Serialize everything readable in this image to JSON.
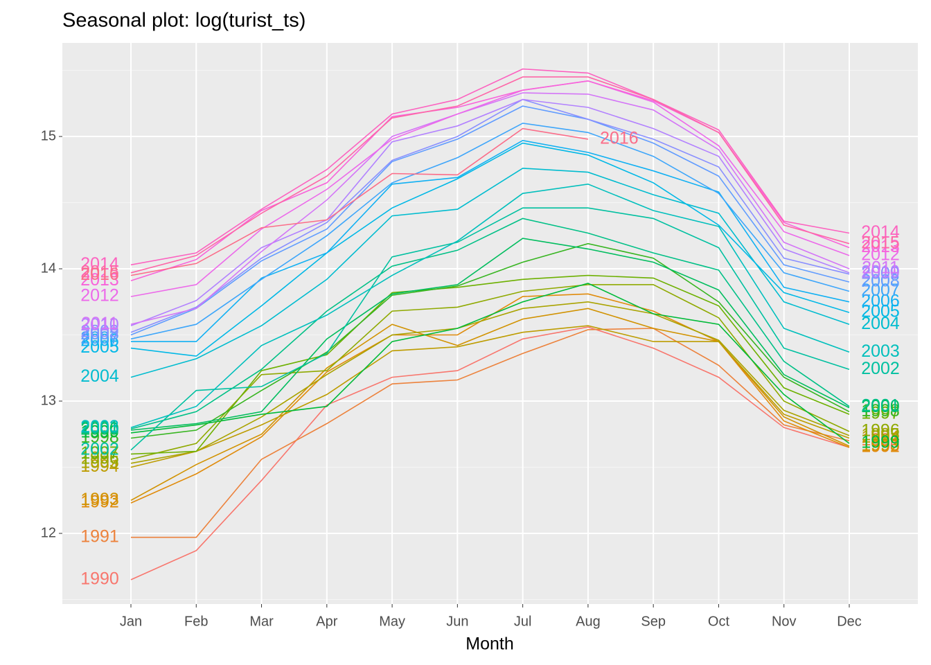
{
  "chart_data": {
    "type": "line",
    "title": "Seasonal plot: log(turist_ts)",
    "x_label": "Month",
    "categories": [
      "Jan",
      "Feb",
      "Mar",
      "Apr",
      "May",
      "Jun",
      "Jul",
      "Aug",
      "Sep",
      "Oct",
      "Nov",
      "Dec"
    ],
    "ylim": [
      11.466,
      15.707
    ],
    "yticks": [
      12,
      13,
      14,
      15
    ],
    "grid": true,
    "series": [
      {
        "name": "1990",
        "color": "#F8766D",
        "values": [
          11.65,
          11.87,
          12.4,
          12.97,
          13.18,
          13.23,
          13.47,
          13.56,
          13.4,
          13.18,
          12.8,
          12.65
        ]
      },
      {
        "name": "1991",
        "color": "#EC823C",
        "values": [
          11.97,
          11.97,
          12.56,
          12.83,
          13.13,
          13.16,
          13.36,
          13.54,
          13.55,
          13.27,
          12.82,
          12.7
        ]
      },
      {
        "name": "1992",
        "color": "#E08B0B",
        "values": [
          12.23,
          12.45,
          12.73,
          13.22,
          13.5,
          13.5,
          13.79,
          13.81,
          13.68,
          13.45,
          12.85,
          12.65
        ]
      },
      {
        "name": "1993",
        "color": "#D19200",
        "values": [
          12.25,
          12.52,
          12.75,
          13.25,
          13.58,
          13.42,
          13.62,
          13.7,
          13.55,
          13.45,
          12.88,
          12.66
        ]
      },
      {
        "name": "1994",
        "color": "#BD9C00",
        "values": [
          12.5,
          12.62,
          12.82,
          13.05,
          13.38,
          13.41,
          13.52,
          13.57,
          13.45,
          13.45,
          12.9,
          12.72
        ]
      },
      {
        "name": "1995",
        "color": "#AAA300",
        "values": [
          12.53,
          12.62,
          12.88,
          13.2,
          13.5,
          13.55,
          13.7,
          13.75,
          13.66,
          13.46,
          12.93,
          12.74
        ]
      },
      {
        "name": "1996",
        "color": "#8FA900",
        "values": [
          12.56,
          12.68,
          13.2,
          13.23,
          13.68,
          13.71,
          13.83,
          13.88,
          13.88,
          13.63,
          13.0,
          12.77
        ]
      },
      {
        "name": "1997",
        "color": "#6DB000",
        "values": [
          12.6,
          12.62,
          13.23,
          13.35,
          13.82,
          13.86,
          13.92,
          13.95,
          13.93,
          13.72,
          13.1,
          12.9
        ]
      },
      {
        "name": "1998",
        "color": "#37B520",
        "values": [
          12.72,
          12.78,
          13.08,
          13.37,
          13.8,
          13.87,
          14.05,
          14.19,
          14.08,
          13.75,
          13.18,
          12.92
        ]
      },
      {
        "name": "1999",
        "color": "#00BA38",
        "values": [
          12.76,
          12.82,
          12.9,
          12.96,
          13.45,
          13.55,
          13.75,
          13.89,
          13.66,
          13.58,
          13.05,
          12.68
        ]
      },
      {
        "name": "2000",
        "color": "#00BD5E",
        "values": [
          12.78,
          12.83,
          12.92,
          13.47,
          13.81,
          13.88,
          14.23,
          14.15,
          14.05,
          13.84,
          13.2,
          12.95
        ]
      },
      {
        "name": "2001",
        "color": "#00C086",
        "values": [
          12.79,
          12.92,
          13.24,
          13.68,
          14.02,
          14.14,
          14.38,
          14.27,
          14.12,
          13.99,
          13.3,
          12.96
        ]
      },
      {
        "name": "2002",
        "color": "#00C0A0",
        "values": [
          12.63,
          13.08,
          13.11,
          13.36,
          14.09,
          14.2,
          14.46,
          14.46,
          14.38,
          14.16,
          13.4,
          13.24
        ]
      },
      {
        "name": "2003",
        "color": "#00BFBC",
        "values": [
          12.8,
          12.96,
          13.42,
          13.65,
          13.95,
          14.21,
          14.57,
          14.64,
          14.44,
          14.32,
          13.55,
          13.37
        ]
      },
      {
        "name": "2004",
        "color": "#00BCCF",
        "values": [
          13.18,
          13.32,
          13.57,
          13.92,
          14.4,
          14.45,
          14.76,
          14.73,
          14.56,
          14.42,
          13.75,
          13.58
        ]
      },
      {
        "name": "2005",
        "color": "#00B8E6",
        "values": [
          13.4,
          13.34,
          13.72,
          14.12,
          14.46,
          14.68,
          14.95,
          14.86,
          14.65,
          14.33,
          13.82,
          13.67
        ]
      },
      {
        "name": "2006",
        "color": "#10B0F3",
        "values": [
          13.45,
          13.45,
          13.93,
          14.12,
          14.64,
          14.69,
          14.97,
          14.88,
          14.74,
          14.58,
          13.86,
          13.75
        ]
      },
      {
        "name": "2007",
        "color": "#3EA6FA",
        "values": [
          13.47,
          13.58,
          13.92,
          14.25,
          14.65,
          14.84,
          15.1,
          15.03,
          14.85,
          14.57,
          13.97,
          13.83
        ]
      },
      {
        "name": "2008",
        "color": "#619CFF",
        "values": [
          13.5,
          13.7,
          14.06,
          14.3,
          14.81,
          14.98,
          15.23,
          15.13,
          14.95,
          14.7,
          14.03,
          13.9
        ]
      },
      {
        "name": "2009",
        "color": "#898FFF",
        "values": [
          13.52,
          13.71,
          14.08,
          14.35,
          14.82,
          15.0,
          15.28,
          15.13,
          14.98,
          14.77,
          14.08,
          13.96
        ]
      },
      {
        "name": "2010",
        "color": "#B281FF",
        "values": [
          13.57,
          13.76,
          14.16,
          14.37,
          14.96,
          15.08,
          15.28,
          15.22,
          15.06,
          14.85,
          14.15,
          13.97
        ]
      },
      {
        "name": "2011",
        "color": "#D475F7",
        "values": [
          13.58,
          13.7,
          14.13,
          14.52,
          15.0,
          15.17,
          15.33,
          15.32,
          15.2,
          14.9,
          14.2,
          14.0
        ]
      },
      {
        "name": "2012",
        "color": "#EC69EA",
        "values": [
          13.79,
          13.88,
          14.3,
          14.6,
          14.98,
          15.17,
          15.35,
          15.42,
          15.26,
          14.93,
          14.28,
          14.1
        ]
      },
      {
        "name": "2013",
        "color": "#F863DA",
        "values": [
          13.91,
          14.07,
          14.44,
          14.65,
          15.15,
          15.22,
          15.35,
          15.42,
          15.27,
          15.03,
          14.35,
          14.16
        ]
      },
      {
        "name": "2014",
        "color": "#FC63C0",
        "values": [
          14.03,
          14.12,
          14.45,
          14.75,
          15.17,
          15.28,
          15.51,
          15.48,
          15.28,
          15.05,
          14.36,
          14.27
        ]
      },
      {
        "name": "2015",
        "color": "#FE66A7",
        "values": [
          13.97,
          14.1,
          14.42,
          14.7,
          15.14,
          15.23,
          15.45,
          15.45,
          15.28,
          15.03,
          14.33,
          14.19
        ]
      },
      {
        "name": "2016",
        "color": "#FB6D89",
        "values": [
          13.95,
          14.04,
          14.31,
          14.37,
          14.72,
          14.71,
          15.06,
          14.98,
          null,
          null,
          null,
          null
        ]
      }
    ]
  }
}
